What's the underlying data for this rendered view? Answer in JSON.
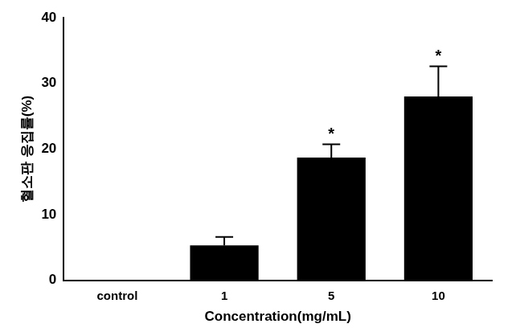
{
  "chart_data": {
    "type": "bar",
    "x_label": "Concentration(mg/mL)",
    "y_label": "혈소판 응집률(%)",
    "categories": [
      "control",
      "1",
      "5",
      "10"
    ],
    "values": [
      0,
      5.3,
      18.7,
      28.0
    ],
    "errors": [
      null,
      1.3,
      2.0,
      4.6
    ],
    "significance": [
      null,
      null,
      "*",
      "*"
    ],
    "color": "#000000",
    "ylim": [
      0,
      40
    ],
    "yticks": [
      0,
      10,
      20,
      30,
      40
    ],
    "grid": false
  }
}
